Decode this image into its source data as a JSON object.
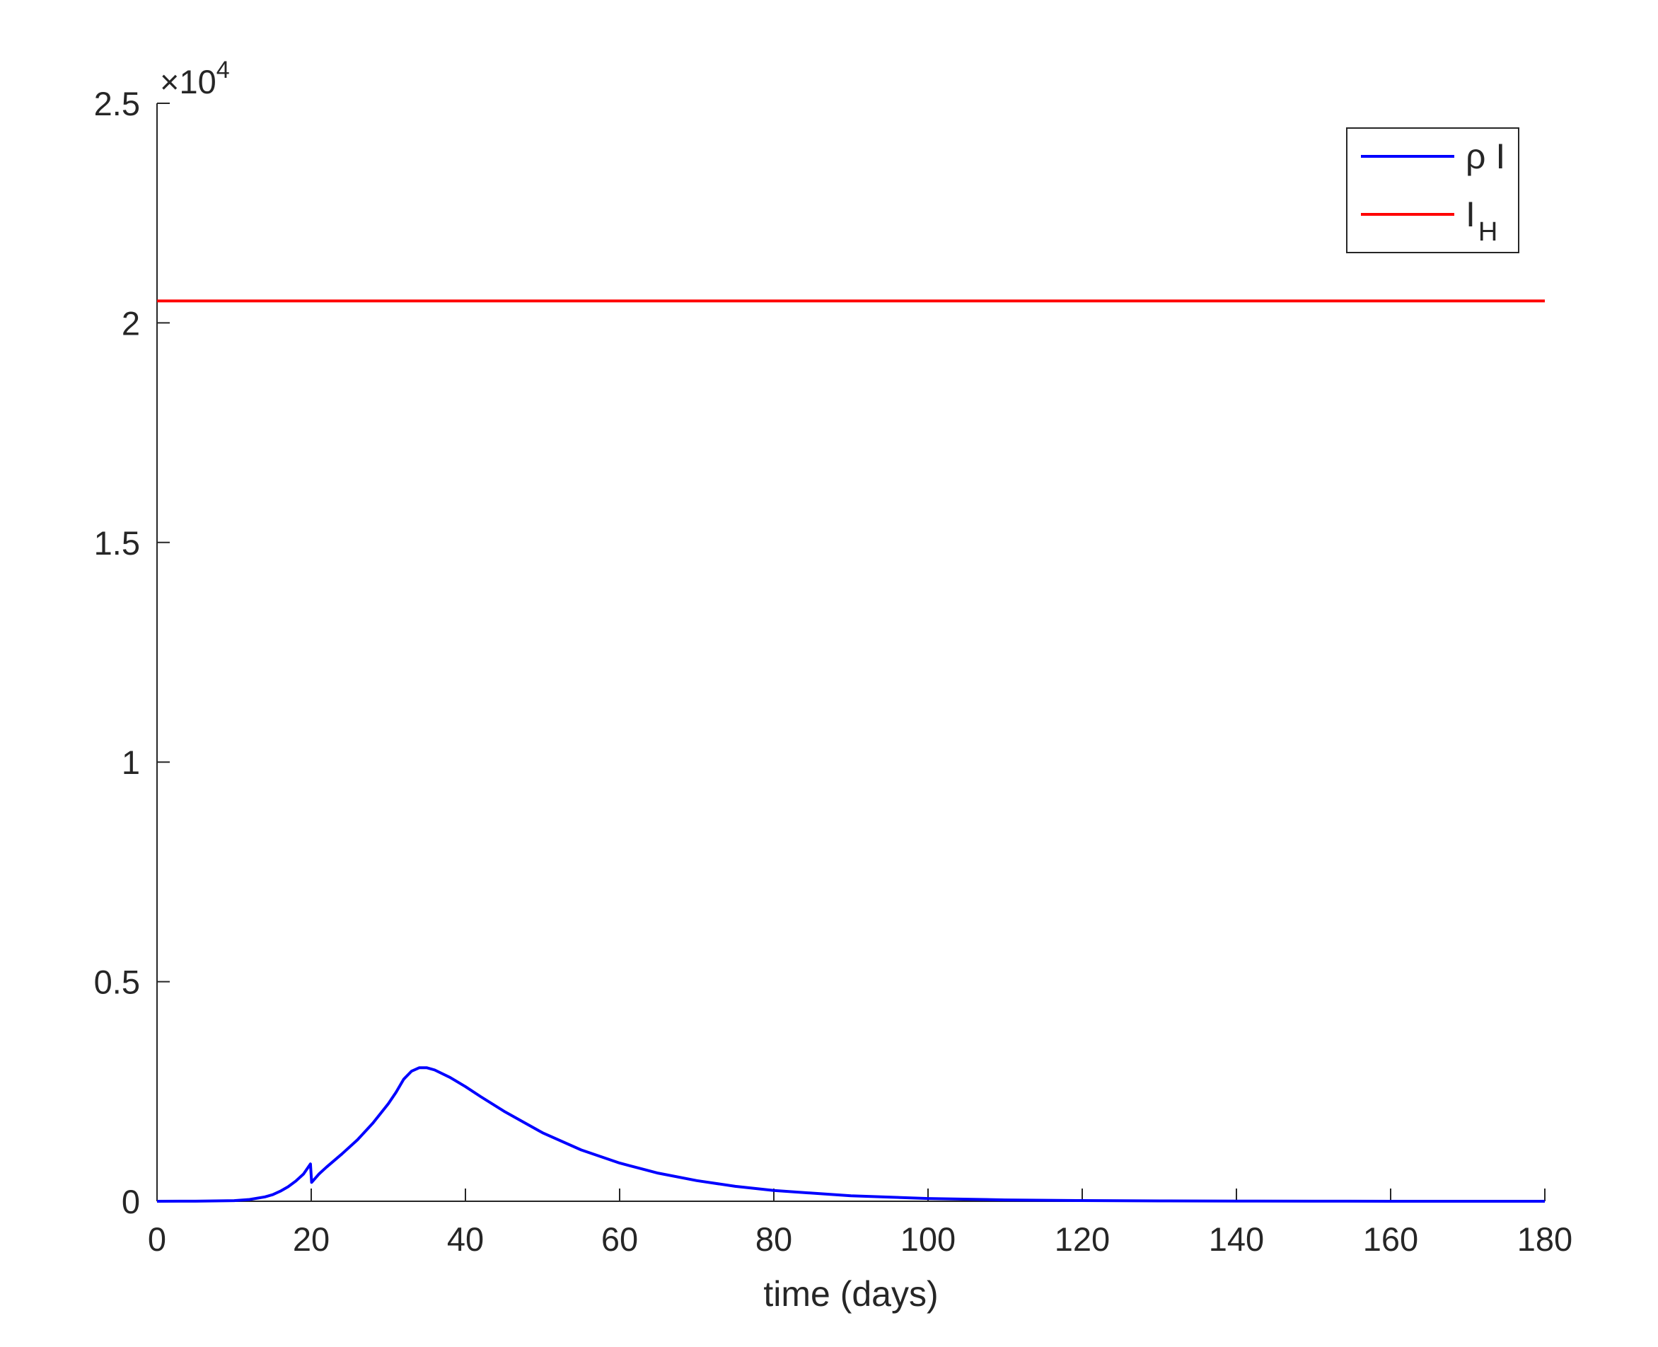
{
  "chart_data": {
    "type": "line",
    "title": "",
    "xlabel": "time (days)",
    "ylabel": "",
    "xlim": [
      0,
      180
    ],
    "ylim": [
      0,
      25000
    ],
    "y_exponent_label": {
      "base": "10",
      "power": "4"
    },
    "xticks": [
      0,
      20,
      40,
      60,
      80,
      100,
      120,
      140,
      160,
      180
    ],
    "xtick_labels": [
      "0",
      "20",
      "40",
      "60",
      "80",
      "100",
      "120",
      "140",
      "160",
      "180"
    ],
    "yticks": [
      0,
      5000,
      10000,
      15000,
      20000,
      25000
    ],
    "ytick_labels": [
      "0",
      "0.5",
      "1",
      "1.5",
      "2",
      "2.5"
    ],
    "grid": false,
    "box": false,
    "legend_position": "top-right",
    "series": [
      {
        "name": "ρ I",
        "legend_main": "ρ I",
        "legend_sub": "",
        "color": "#0000ff",
        "x": [
          0,
          5,
          10,
          12,
          14,
          15,
          16,
          17,
          18,
          19,
          19.9,
          20.05,
          21,
          22,
          24,
          26,
          28,
          30,
          31,
          32,
          33,
          34,
          35,
          36,
          38,
          40,
          42,
          45,
          50,
          55,
          60,
          65,
          70,
          75,
          80,
          90,
          100,
          110,
          120,
          130,
          140,
          150,
          160,
          170,
          180
        ],
        "y": [
          0,
          2,
          15,
          40,
          100,
          150,
          230,
          330,
          460,
          620,
          850,
          430,
          620,
          780,
          1080,
          1400,
          1780,
          2220,
          2480,
          2780,
          2960,
          3040,
          3040,
          2990,
          2820,
          2610,
          2380,
          2050,
          1560,
          1170,
          870,
          640,
          470,
          340,
          245,
          125,
          62,
          31,
          16,
          8,
          4,
          2,
          1,
          0.5,
          0
        ]
      },
      {
        "name": "I_H",
        "legend_main": "I",
        "legend_sub": "H",
        "color": "#ff0000",
        "x": [
          0,
          180
        ],
        "y": [
          20500,
          20500
        ]
      }
    ]
  }
}
